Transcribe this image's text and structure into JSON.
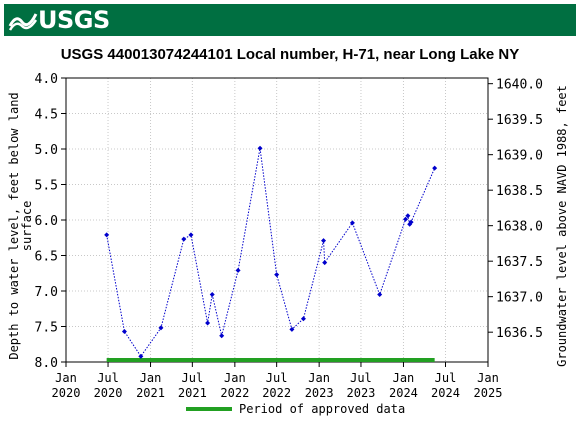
{
  "banner": {
    "logo_text": "USGS",
    "color": "#006f41"
  },
  "chart_data": {
    "type": "scatter",
    "title": "USGS 440013074244101 Local number, H-71, near Long Lake NY",
    "ylabel_left_line1": "Depth to water level, feet below land",
    "ylabel_left_line2": "surface",
    "ylabel_right": "Groundwater level above NAVD 1988, feet",
    "left_ylim": [
      8.0,
      4.0
    ],
    "right_ylim": [
      1636.08,
      1640.08
    ],
    "left_ticks": [
      "4.0",
      "4.5",
      "5.0",
      "5.5",
      "6.0",
      "6.5",
      "7.0",
      "7.5",
      "8.0"
    ],
    "right_ticks": [
      "1640.0",
      "1639.5",
      "1639.0",
      "1638.5",
      "1638.0",
      "1637.5",
      "1637.0",
      "1636.5"
    ],
    "x_ticks": [
      {
        "month": "Jan",
        "year": "2020"
      },
      {
        "month": "Jul",
        "year": "2020"
      },
      {
        "month": "Jan",
        "year": "2021"
      },
      {
        "month": "Jul",
        "year": "2021"
      },
      {
        "month": "Jan",
        "year": "2022"
      },
      {
        "month": "Jul",
        "year": "2022"
      },
      {
        "month": "Jan",
        "year": "2023"
      },
      {
        "month": "Jul",
        "year": "2023"
      },
      {
        "month": "Jan",
        "year": "2024"
      },
      {
        "month": "Jul",
        "year": "2024"
      },
      {
        "month": "Jan",
        "year": "2025"
      }
    ],
    "x_range": [
      "2020-01-01",
      "2025-01-01"
    ],
    "grid": true,
    "series": [
      {
        "color": "#0000cc",
        "points": [
          {
            "x": "2020-06-25",
            "y": 6.21
          },
          {
            "x": "2020-09-10",
            "y": 7.57
          },
          {
            "x": "2020-11-20",
            "y": 7.92
          },
          {
            "x": "2021-02-15",
            "y": 7.52
          },
          {
            "x": "2021-05-25",
            "y": 6.27
          },
          {
            "x": "2021-06-25",
            "y": 6.21
          },
          {
            "x": "2021-09-05",
            "y": 7.45
          },
          {
            "x": "2021-09-25",
            "y": 7.05
          },
          {
            "x": "2021-11-05",
            "y": 7.63
          },
          {
            "x": "2022-01-15",
            "y": 6.71
          },
          {
            "x": "2022-04-20",
            "y": 4.99
          },
          {
            "x": "2022-07-01",
            "y": 6.77
          },
          {
            "x": "2022-09-05",
            "y": 7.54
          },
          {
            "x": "2022-10-25",
            "y": 7.39
          },
          {
            "x": "2023-01-20",
            "y": 6.29
          },
          {
            "x": "2023-01-25",
            "y": 6.6
          },
          {
            "x": "2023-05-25",
            "y": 6.04
          },
          {
            "x": "2023-09-20",
            "y": 7.05
          },
          {
            "x": "2024-01-10",
            "y": 5.99
          },
          {
            "x": "2024-01-20",
            "y": 5.94
          },
          {
            "x": "2024-01-28",
            "y": 6.06
          },
          {
            "x": "2024-02-03",
            "y": 6.03
          },
          {
            "x": "2024-05-15",
            "y": 5.27
          }
        ]
      }
    ],
    "approved_period": {
      "start": "2020-06-25",
      "end": "2024-05-15",
      "color": "#22a022"
    },
    "legend": {
      "label": "Period of approved data",
      "placement": "bottom"
    }
  }
}
